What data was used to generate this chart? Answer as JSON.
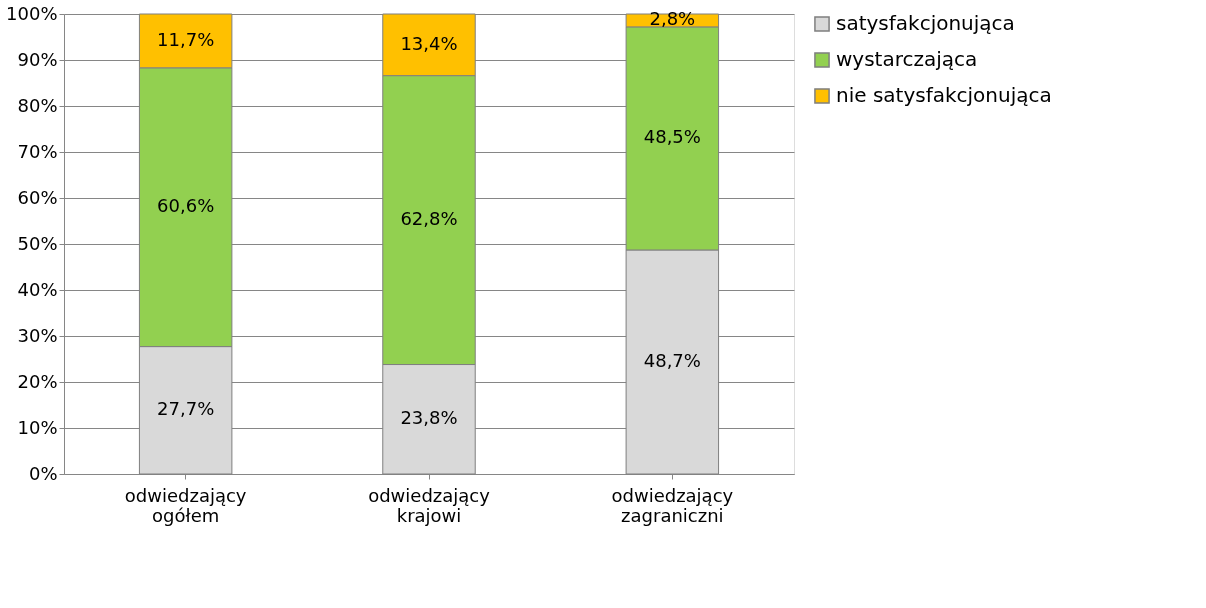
{
  "chart_data": {
    "type": "bar",
    "stacked": true,
    "categories": [
      "odwiedzający ogółem",
      "odwiedzający krajowi",
      "odwiedzający zagraniczni"
    ],
    "series": [
      {
        "name": "satysfakcjonująca",
        "color": "#d9d9d9",
        "values": [
          27.7,
          23.8,
          48.7
        ],
        "value_labels": [
          "27,7%",
          "23,8%",
          "48,7%"
        ]
      },
      {
        "name": "wystarczająca",
        "color": "#92d050",
        "values": [
          60.6,
          62.8,
          48.5
        ],
        "value_labels": [
          "60,6%",
          "62,8%",
          "48,5%"
        ]
      },
      {
        "name": "nie satysfakcjonująca",
        "color": "#ffc000",
        "values": [
          11.7,
          13.4,
          2.8
        ],
        "value_labels": [
          "11,7%",
          "13,4%",
          "2,8%"
        ]
      }
    ],
    "ylim": [
      0,
      100
    ],
    "yticks": [
      {
        "value": 0,
        "label": "0%"
      },
      {
        "value": 10,
        "label": "10%"
      },
      {
        "value": 20,
        "label": "20%"
      },
      {
        "value": 30,
        "label": "30%"
      },
      {
        "value": 40,
        "label": "40%"
      },
      {
        "value": 50,
        "label": "50%"
      },
      {
        "value": 60,
        "label": "60%"
      },
      {
        "value": 70,
        "label": "70%"
      },
      {
        "value": 80,
        "label": "80%"
      },
      {
        "value": 90,
        "label": "90%"
      },
      {
        "value": 100,
        "label": "100%"
      }
    ],
    "grid": "y",
    "legend": "right"
  }
}
